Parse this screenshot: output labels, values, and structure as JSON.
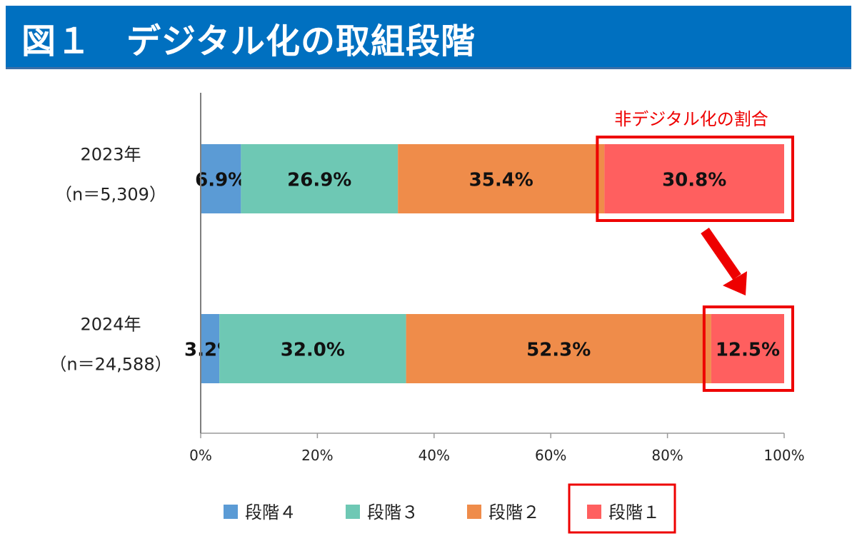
{
  "header": {
    "title": "図１　デジタル化の取組段階"
  },
  "colors": {
    "stage4": "#5b9bd5",
    "stage3": "#6ec8b4",
    "stage2": "#ef8c4a",
    "stage1": "#ff5f5f",
    "header": "#0070c0",
    "highlight": "#ee0000"
  },
  "chart_data": {
    "type": "bar",
    "orientation": "horizontal",
    "stacked": true,
    "categories": [
      {
        "year": "2023年",
        "n": "（n＝5,309）"
      },
      {
        "year": "2024年",
        "n": "（n＝24,588）"
      }
    ],
    "series": [
      {
        "name": "段階４",
        "color": "#5b9bd5",
        "values": [
          6.9,
          3.2
        ],
        "labels": [
          "6.9%",
          "3.2%"
        ]
      },
      {
        "name": "段階３",
        "color": "#6ec8b4",
        "values": [
          26.9,
          32.0
        ],
        "labels": [
          "26.9%",
          "32.0%"
        ]
      },
      {
        "name": "段階２",
        "color": "#ef8c4a",
        "values": [
          35.4,
          52.3
        ],
        "labels": [
          "35.4%",
          "52.3%"
        ]
      },
      {
        "name": "段階１",
        "color": "#ff5f5f",
        "values": [
          30.8,
          12.5
        ],
        "labels": [
          "30.8%",
          "12.5%"
        ]
      }
    ],
    "xlim": [
      0,
      100
    ],
    "xticks": [
      "0%",
      "20%",
      "40%",
      "60%",
      "80%",
      "100%"
    ],
    "legend_position": "bottom",
    "annotation": {
      "text": "非デジタル化の割合",
      "highlight_series": "段階１"
    }
  }
}
